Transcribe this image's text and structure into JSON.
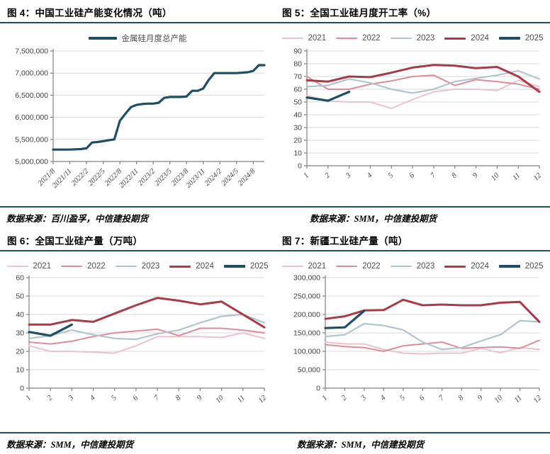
{
  "accent_colors": {
    "rule": "#1f4e63",
    "grid": "#d9d9d9",
    "axis": "#7f7f7f",
    "axis_text": "#404040"
  },
  "chart_data": [
    {
      "type": "line",
      "title": "图 4：中国工业硅产能变化情况（吨）",
      "source": "数据来源：百川盈孚，中信建投期货",
      "ylim": [
        5000000,
        7500000
      ],
      "ystep": 500000,
      "y_format": "thousands",
      "x_count": 39,
      "x_tick_every": 3,
      "x_tick_labels": [
        "2021/8",
        "2021/11",
        "2022/2",
        "2022/5",
        "2022/8",
        "2022/11",
        "2023/2",
        "2023/5",
        "2023/8",
        "2023/11",
        "2024/2",
        "2024/5",
        "2024/8"
      ],
      "grid": true,
      "legend_position": "top-center",
      "series": [
        {
          "name": "金属硅月度总产能",
          "color": "#1f4e63",
          "width": 3.2,
          "values": [
            5270000,
            5270000,
            5270000,
            5270000,
            5275000,
            5280000,
            5300000,
            5430000,
            5440000,
            5460000,
            5480000,
            5500000,
            5920000,
            6080000,
            6230000,
            6280000,
            6300000,
            6310000,
            6310000,
            6330000,
            6440000,
            6460000,
            6460000,
            6460000,
            6470000,
            6600000,
            6600000,
            6650000,
            6850000,
            7000000,
            7000000,
            7000000,
            7000000,
            7000000,
            7010000,
            7020000,
            7050000,
            7180000,
            7180000
          ]
        }
      ]
    },
    {
      "type": "line",
      "title": "图 5：全国工业硅月度开工率（%）",
      "source": "数据来源：SMM，中信建投期货",
      "ylim": [
        0,
        90
      ],
      "ystep": 10,
      "y_format": "plain",
      "x_count": 12,
      "x_tick_every": 1,
      "x_tick_labels": [
        "1",
        "2",
        "3",
        "4",
        "5",
        "6",
        "7",
        "8",
        "9",
        "10",
        "11",
        "12"
      ],
      "grid": true,
      "legend_position": "top-center",
      "series": [
        {
          "name": "2021",
          "color": "#e9c4cd",
          "width": 2,
          "values": [
            55,
            51,
            50,
            50,
            45,
            52,
            58,
            60,
            60,
            59,
            67,
            62
          ]
        },
        {
          "name": "2022",
          "color": "#d98e9b",
          "width": 2,
          "values": [
            70,
            60,
            60,
            64,
            66.5,
            70,
            71,
            63,
            67.5,
            66,
            64,
            60
          ]
        },
        {
          "name": "2023",
          "color": "#b3c4cd",
          "width": 2.2,
          "values": [
            62,
            63,
            68,
            65,
            60,
            57,
            60,
            66,
            68.5,
            71,
            74.5,
            68
          ]
        },
        {
          "name": "2024",
          "color": "#a83b49",
          "width": 3,
          "values": [
            67,
            66,
            70,
            69.5,
            73,
            77,
            79,
            78.5,
            76.5,
            77.5,
            70,
            58
          ]
        },
        {
          "name": "2025",
          "color": "#1f4e63",
          "width": 3.2,
          "values": [
            53.5,
            51,
            58,
            null,
            null,
            null,
            null,
            null,
            null,
            null,
            null,
            null
          ]
        }
      ]
    },
    {
      "type": "line",
      "title": "图 6：全国工业硅产量（万吨）",
      "source": "数据来源：SMM，中信建投期货",
      "ylim": [
        0,
        60
      ],
      "ystep": 10,
      "y_format": "plain",
      "x_count": 12,
      "x_tick_every": 1,
      "x_tick_labels": [
        "1",
        "2",
        "3",
        "4",
        "5",
        "6",
        "7",
        "8",
        "9",
        "10",
        "11",
        "12"
      ],
      "grid": true,
      "legend_position": "top-center",
      "series": [
        {
          "name": "2021",
          "color": "#e9c4cd",
          "width": 2,
          "values": [
            23,
            20,
            20,
            19.5,
            19,
            23,
            28,
            28,
            28,
            27.5,
            30,
            27
          ]
        },
        {
          "name": "2022",
          "color": "#d98e9b",
          "width": 2,
          "values": [
            25,
            24,
            25.5,
            28,
            30,
            31,
            32,
            28.5,
            32.5,
            32.5,
            31.5,
            30
          ]
        },
        {
          "name": "2023",
          "color": "#b3c4cd",
          "width": 2.2,
          "values": [
            27,
            28.5,
            31.5,
            29,
            27,
            26.5,
            29.5,
            31.5,
            35.5,
            39,
            40,
            35.5
          ]
        },
        {
          "name": "2024",
          "color": "#a83b49",
          "width": 3,
          "values": [
            34.5,
            34.5,
            37,
            36,
            40.5,
            45,
            49,
            47.5,
            45.5,
            47,
            40,
            33
          ]
        },
        {
          "name": "2025",
          "color": "#1f4e63",
          "width": 3.2,
          "values": [
            30.5,
            28.5,
            34.5,
            null,
            null,
            null,
            null,
            null,
            null,
            null,
            null,
            null
          ]
        }
      ]
    },
    {
      "type": "line",
      "title": "图 7：新疆工业硅产量（吨）",
      "source": "数据来源：SMM，中信建投期货",
      "ylim": [
        0,
        300000
      ],
      "ystep": 50000,
      "y_format": "thousands",
      "x_count": 12,
      "x_tick_every": 1,
      "x_tick_labels": [
        "1",
        "2",
        "3",
        "4",
        "5",
        "6",
        "7",
        "8",
        "9",
        "10",
        "11",
        "12"
      ],
      "grid": true,
      "legend_position": "top-center",
      "series": [
        {
          "name": "2021",
          "color": "#e9c4cd",
          "width": 2,
          "values": [
            125000,
            120000,
            120000,
            105000,
            95000,
            93000,
            95000,
            95000,
            108000,
            96000,
            110000,
            105000
          ]
        },
        {
          "name": "2022",
          "color": "#d98e9b",
          "width": 2,
          "values": [
            118000,
            113000,
            110000,
            100000,
            115000,
            120000,
            125000,
            108000,
            110000,
            112000,
            108000,
            130000
          ]
        },
        {
          "name": "2023",
          "color": "#b3c4cd",
          "width": 2.2,
          "values": [
            140000,
            145000,
            175000,
            170000,
            158000,
            125000,
            105000,
            110000,
            128000,
            145000,
            183000,
            180000
          ]
        },
        {
          "name": "2024",
          "color": "#a83b49",
          "width": 3,
          "values": [
            188000,
            195000,
            211000,
            212000,
            240000,
            225000,
            227000,
            225000,
            225000,
            232000,
            234000,
            180000
          ]
        },
        {
          "name": "2025",
          "color": "#1f4e63",
          "width": 3.2,
          "values": [
            163000,
            165000,
            210000,
            null,
            null,
            null,
            null,
            null,
            null,
            null,
            null,
            null
          ]
        }
      ]
    }
  ]
}
